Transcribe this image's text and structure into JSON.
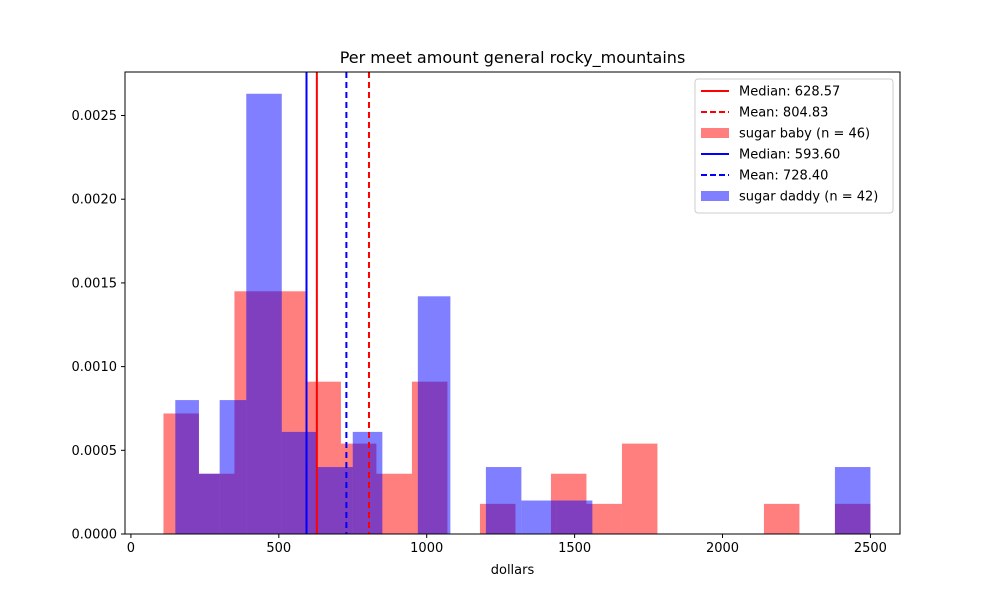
{
  "chart_data": {
    "type": "histogram",
    "title": "Per meet amount general rocky_mountains",
    "xlabel": "dollars",
    "ylabel": "",
    "xlim": [
      -20,
      2600
    ],
    "ylim": [
      0,
      0.00276
    ],
    "xticks": [
      0,
      500,
      1000,
      1500,
      2000,
      2500
    ],
    "yticks": [
      0.0,
      0.0005,
      0.001,
      0.0015,
      0.002,
      0.0025
    ],
    "xtick_labels": [
      "0",
      "500",
      "1000",
      "1500",
      "2000",
      "2500"
    ],
    "ytick_labels": [
      "0.0000",
      "0.0005",
      "0.0010",
      "0.0015",
      "0.0020",
      "0.0025"
    ],
    "legend_position": "top-right",
    "series": [
      {
        "name": "sugar baby (n = 46)",
        "color": "#ff0000",
        "alpha": 0.5,
        "bins": [
          {
            "x0": 110,
            "x1": 150,
            "y": 0.00072
          },
          {
            "x0": 150,
            "x1": 230,
            "y": 0.00072
          },
          {
            "x0": 230,
            "x1": 350,
            "y": 0.00036
          },
          {
            "x0": 350,
            "x1": 470,
            "y": 0.00145
          },
          {
            "x0": 470,
            "x1": 590,
            "y": 0.00145
          },
          {
            "x0": 590,
            "x1": 710,
            "y": 0.00091
          },
          {
            "x0": 710,
            "x1": 830,
            "y": 0.00054
          },
          {
            "x0": 830,
            "x1": 950,
            "y": 0.00036
          },
          {
            "x0": 950,
            "x1": 1070,
            "y": 0.00091
          },
          {
            "x0": 1180,
            "x1": 1300,
            "y": 0.00018
          },
          {
            "x0": 1420,
            "x1": 1540,
            "y": 0.00036
          },
          {
            "x0": 1540,
            "x1": 1660,
            "y": 0.00018
          },
          {
            "x0": 1660,
            "x1": 1780,
            "y": 0.00054
          },
          {
            "x0": 2140,
            "x1": 2260,
            "y": 0.00018
          },
          {
            "x0": 2380,
            "x1": 2500,
            "y": 0.00018
          }
        ]
      },
      {
        "name": "sugar daddy (n = 42)",
        "color": "#0000ff",
        "alpha": 0.5,
        "bins": [
          {
            "x0": 150,
            "x1": 230,
            "y": 0.0008
          },
          {
            "x0": 230,
            "x1": 300,
            "y": 0.00036
          },
          {
            "x0": 300,
            "x1": 390,
            "y": 0.0008
          },
          {
            "x0": 390,
            "x1": 510,
            "y": 0.00263
          },
          {
            "x0": 510,
            "x1": 630,
            "y": 0.00061
          },
          {
            "x0": 630,
            "x1": 750,
            "y": 0.0004
          },
          {
            "x0": 750,
            "x1": 850,
            "y": 0.00061
          },
          {
            "x0": 970,
            "x1": 1080,
            "y": 0.00142
          },
          {
            "x0": 1200,
            "x1": 1320,
            "y": 0.0004
          },
          {
            "x0": 1320,
            "x1": 1440,
            "y": 0.0002
          },
          {
            "x0": 1440,
            "x1": 1560,
            "y": 0.0002
          },
          {
            "x0": 2380,
            "x1": 2500,
            "y": 0.0004
          }
        ]
      }
    ],
    "vlines": [
      {
        "x": 628.57,
        "color": "#ff0000",
        "style": "solid",
        "label": "Median: 628.57"
      },
      {
        "x": 804.83,
        "color": "#ff0000",
        "style": "dashed",
        "label": "Mean: 804.83"
      },
      {
        "x": 593.6,
        "color": "#0000ff",
        "style": "solid",
        "label": "Median: 593.60"
      },
      {
        "x": 728.4,
        "color": "#0000ff",
        "style": "dashed",
        "label": "Mean: 728.40"
      }
    ],
    "legend": [
      {
        "kind": "line",
        "style": "solid",
        "color": "#ff0000",
        "label": "Median: 628.57"
      },
      {
        "kind": "line",
        "style": "dashed",
        "color": "#ff0000",
        "label": "Mean: 804.83"
      },
      {
        "kind": "patch",
        "color": "#ff0000",
        "label": "sugar baby (n = 46)"
      },
      {
        "kind": "line",
        "style": "solid",
        "color": "#0000ff",
        "label": "Median: 593.60"
      },
      {
        "kind": "line",
        "style": "dashed",
        "color": "#0000ff",
        "label": "Mean: 728.40"
      },
      {
        "kind": "patch",
        "color": "#0000ff",
        "label": "sugar daddy (n = 42)"
      }
    ]
  }
}
